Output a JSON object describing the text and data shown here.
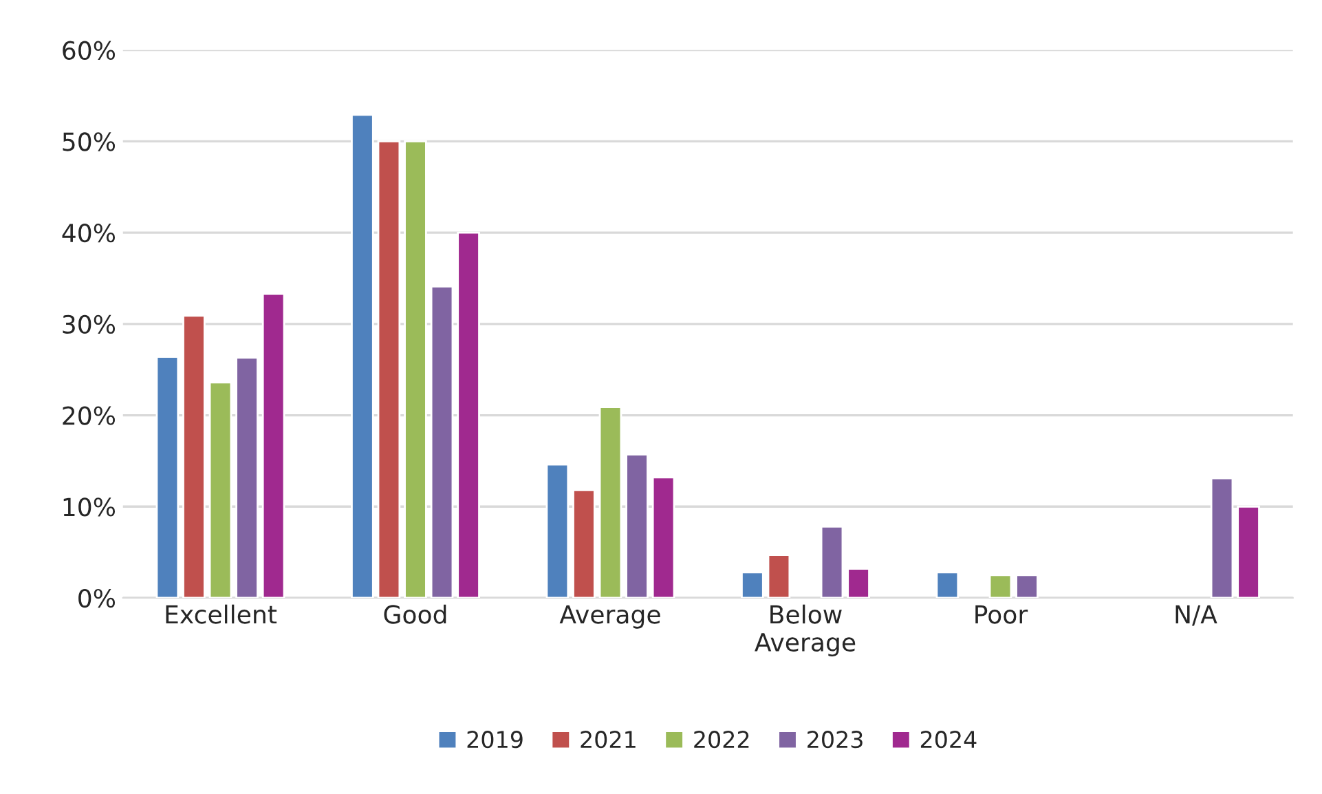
{
  "chart_data": {
    "type": "bar",
    "categories": [
      "Excellent",
      "Good",
      "Average",
      "Below\nAverage",
      "Poor",
      "N/A"
    ],
    "series": [
      {
        "name": "2019",
        "color": "#4f81bd",
        "values": [
          26.4,
          52.9,
          14.6,
          2.8,
          2.8,
          null
        ]
      },
      {
        "name": "2021",
        "color": "#c0504d",
        "values": [
          30.9,
          50,
          11.8,
          4.7,
          null,
          null
        ]
      },
      {
        "name": "2022",
        "color": "#9bbb59",
        "values": [
          23.6,
          50,
          20.9,
          null,
          2.5,
          null
        ]
      },
      {
        "name": "2023",
        "color": "#8064a2",
        "values": [
          26.3,
          34.1,
          15.7,
          7.8,
          2.5,
          13.1
        ]
      },
      {
        "name": "2024",
        "color": "#a0298f",
        "values": [
          33.3,
          40,
          13.2,
          3.2,
          null,
          10
        ]
      }
    ],
    "ylim": [
      0,
      60
    ],
    "yticks": [
      {
        "value": 0,
        "label": "0%"
      },
      {
        "value": 10,
        "label": "10%"
      },
      {
        "value": 20,
        "label": "20%"
      },
      {
        "value": 30,
        "label": "30%"
      },
      {
        "value": 40,
        "label": "40%"
      },
      {
        "value": 50,
        "label": "50%"
      },
      {
        "value": 60,
        "label": "60%"
      }
    ],
    "grid": "y",
    "legend": "bottom"
  }
}
